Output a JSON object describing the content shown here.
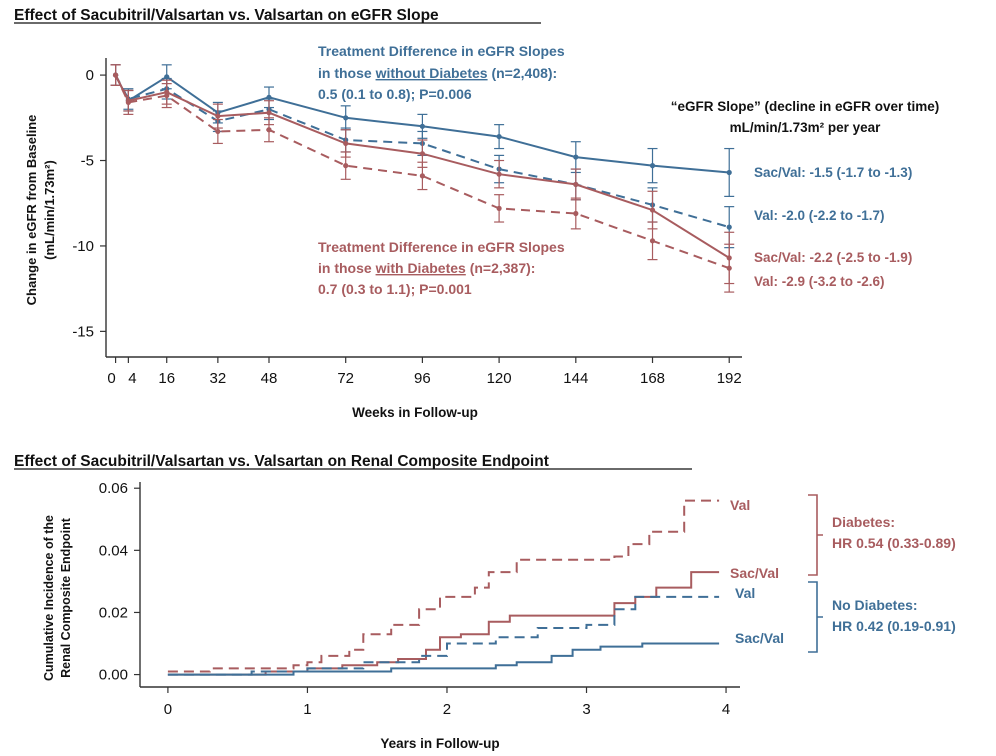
{
  "colors": {
    "blue": "#3f6f97",
    "red": "#a85c5f",
    "axis": "#333333",
    "text": "#111111"
  },
  "chart_data": [
    {
      "type": "line",
      "title": "Effect of Sacubitril/Valsartan vs. Valsartan on eGFR Slope",
      "xlabel": "Weeks in Follow-up",
      "ylabel": "Change in eGFR from Baseline (mL/min/1.73m²)",
      "ylabel_lines": [
        "Change in eGFR from Baseline",
        "(mL/min/1.73m²)"
      ],
      "xlim": [
        -3,
        196
      ],
      "ylim": [
        -16.5,
        1
      ],
      "x_ticks": [
        0,
        4,
        16,
        32,
        48,
        72,
        96,
        120,
        144,
        168,
        192
      ],
      "x_tick_labels": [
        "0",
        "4",
        "16",
        "32",
        "48",
        "72",
        "96",
        "120",
        "144",
        "168",
        "192"
      ],
      "y_ticks": [
        0,
        -5,
        -10,
        -15
      ],
      "y_tick_labels": [
        "0",
        "-5",
        "-10",
        "-15"
      ],
      "x": [
        0,
        4,
        16,
        32,
        48,
        72,
        96,
        120,
        144,
        168,
        192
      ],
      "series": [
        {
          "name": "No Diabetes Sac/Val",
          "color_key": "blue",
          "dash": false,
          "values": [
            0,
            -1.5,
            -0.1,
            -2.2,
            -1.3,
            -2.5,
            -3.0,
            -3.6,
            -4.8,
            -5.3,
            -5.7
          ],
          "err": [
            0.6,
            0.6,
            0.7,
            0.6,
            0.6,
            0.7,
            0.7,
            0.7,
            0.9,
            1.0,
            1.4
          ]
        },
        {
          "name": "No Diabetes Val",
          "color_key": "blue",
          "dash": true,
          "values": [
            0,
            -1.4,
            -0.8,
            -2.7,
            -2.0,
            -3.8,
            -4.0,
            -5.5,
            -6.4,
            -7.6,
            -8.9
          ],
          "err": [
            0.6,
            0.6,
            0.6,
            0.6,
            0.6,
            0.7,
            0.7,
            0.8,
            0.9,
            1.0,
            1.2
          ]
        },
        {
          "name": "Diabetes Sac/Val",
          "color_key": "red",
          "dash": false,
          "values": [
            0,
            -1.5,
            -1.0,
            -2.4,
            -2.2,
            -4.0,
            -4.6,
            -5.8,
            -6.4,
            -7.9,
            -10.7
          ],
          "err": [
            0.6,
            0.6,
            0.7,
            0.7,
            0.7,
            0.8,
            0.8,
            0.8,
            0.9,
            1.1,
            1.5
          ]
        },
        {
          "name": "Diabetes Val",
          "color_key": "red",
          "dash": true,
          "values": [
            0,
            -1.6,
            -1.2,
            -3.3,
            -3.2,
            -5.3,
            -5.9,
            -7.8,
            -8.1,
            -9.7,
            -11.3
          ],
          "err": [
            0.6,
            0.7,
            0.7,
            0.7,
            0.7,
            0.8,
            0.8,
            0.8,
            0.9,
            1.1,
            1.4
          ]
        }
      ],
      "annotations": {
        "no_diabetes": {
          "line1": "Treatment Difference in eGFR Slopes",
          "line2_pre": "in those ",
          "line2_u": "without Diabetes",
          "line2_post": " (n=2,408):",
          "line3": "0.5 (0.1 to 0.8); P=0.006"
        },
        "diabetes": {
          "line1": "Treatment Difference in eGFR Slopes",
          "line2_pre": "in those ",
          "line2_u": "with Diabetes",
          "line2_post": " (n=2,387):",
          "line3": "0.7 (0.3 to 1.1); P=0.001"
        },
        "slope_title1": "“eGFR Slope” (decline in eGFR over time)",
        "slope_title2": "mL/min/1.73m² per year",
        "slope_nodiab_sacval": "Sac/Val: -1.5 (-1.7 to -1.3)",
        "slope_nodiab_val": "Val: -2.0 (-2.2 to -1.7)",
        "slope_diab_sacval": "Sac/Val: -2.2 (-2.5 to -1.9)",
        "slope_diab_val": "Val: -2.9 (-3.2 to -2.6)"
      }
    },
    {
      "type": "line",
      "title": "Effect of Sacubitril/Valsartan vs. Valsartan on Renal Composite Endpoint",
      "xlabel": "Years in Follow-up",
      "ylabel": "Cumulative Incidence of the Renal Composite Endpoint",
      "ylabel_lines": [
        "Cumulative Incidence of the",
        "Renal Composite Endpoint"
      ],
      "xlim": [
        -0.2,
        4.1
      ],
      "ylim": [
        -0.004,
        0.062
      ],
      "x_ticks": [
        0,
        1,
        2,
        3,
        4
      ],
      "x_tick_labels": [
        "0",
        "1",
        "2",
        "3",
        "4"
      ],
      "y_ticks": [
        0,
        0.02,
        0.04,
        0.06
      ],
      "y_tick_labels": [
        "0.00",
        "0.02",
        "0.04",
        "0.06"
      ],
      "series": [
        {
          "name": "Diabetes Val",
          "color_key": "red",
          "dash": true,
          "label": "Val",
          "points": [
            [
              0,
              0.001
            ],
            [
              0.3,
              0.002
            ],
            [
              0.9,
              0.003
            ],
            [
              1.0,
              0.004
            ],
            [
              1.1,
              0.006
            ],
            [
              1.3,
              0.008
            ],
            [
              1.4,
              0.013
            ],
            [
              1.6,
              0.016
            ],
            [
              1.8,
              0.021
            ],
            [
              1.95,
              0.025
            ],
            [
              2.2,
              0.028
            ],
            [
              2.3,
              0.033
            ],
            [
              2.5,
              0.037
            ],
            [
              2.8,
              0.037
            ],
            [
              3.2,
              0.038
            ],
            [
              3.3,
              0.042
            ],
            [
              3.45,
              0.046
            ],
            [
              3.7,
              0.056
            ],
            [
              3.95,
              0.056
            ]
          ]
        },
        {
          "name": "Diabetes Sac/Val",
          "color_key": "red",
          "dash": false,
          "label": "Sac/Val",
          "points": [
            [
              0,
              0
            ],
            [
              0.7,
              0.001
            ],
            [
              1.0,
              0.002
            ],
            [
              1.25,
              0.003
            ],
            [
              1.5,
              0.004
            ],
            [
              1.65,
              0.005
            ],
            [
              1.85,
              0.008
            ],
            [
              1.95,
              0.012
            ],
            [
              2.1,
              0.013
            ],
            [
              2.3,
              0.017
            ],
            [
              2.45,
              0.019
            ],
            [
              2.85,
              0.019
            ],
            [
              3.2,
              0.023
            ],
            [
              3.35,
              0.025
            ],
            [
              3.5,
              0.028
            ],
            [
              3.75,
              0.033
            ],
            [
              3.95,
              0.033
            ]
          ]
        },
        {
          "name": "No Diabetes Val",
          "color_key": "blue",
          "dash": true,
          "label": "Val",
          "points": [
            [
              0,
              0
            ],
            [
              0.6,
              0.001
            ],
            [
              1.0,
              0.002
            ],
            [
              1.4,
              0.004
            ],
            [
              1.8,
              0.006
            ],
            [
              2.0,
              0.01
            ],
            [
              2.35,
              0.012
            ],
            [
              2.65,
              0.015
            ],
            [
              3.0,
              0.016
            ],
            [
              3.2,
              0.021
            ],
            [
              3.35,
              0.025
            ],
            [
              3.95,
              0.025
            ]
          ]
        },
        {
          "name": "No Diabetes Sac/Val",
          "color_key": "blue",
          "dash": false,
          "label": "Sac/Val",
          "points": [
            [
              0,
              0
            ],
            [
              0.9,
              0.001
            ],
            [
              1.3,
              0.001
            ],
            [
              1.6,
              0.002
            ],
            [
              2.0,
              0.002
            ],
            [
              2.35,
              0.003
            ],
            [
              2.5,
              0.004
            ],
            [
              2.75,
              0.006
            ],
            [
              2.9,
              0.008
            ],
            [
              3.1,
              0.009
            ],
            [
              3.4,
              0.01
            ],
            [
              3.95,
              0.01
            ]
          ]
        }
      ],
      "groups": {
        "diabetes": {
          "title": "Diabetes:",
          "hr": "HR 0.54 (0.33-0.89)"
        },
        "no_diabetes": {
          "title": "No Diabetes:",
          "hr": "HR 0.42 (0.19-0.91)"
        }
      }
    }
  ]
}
